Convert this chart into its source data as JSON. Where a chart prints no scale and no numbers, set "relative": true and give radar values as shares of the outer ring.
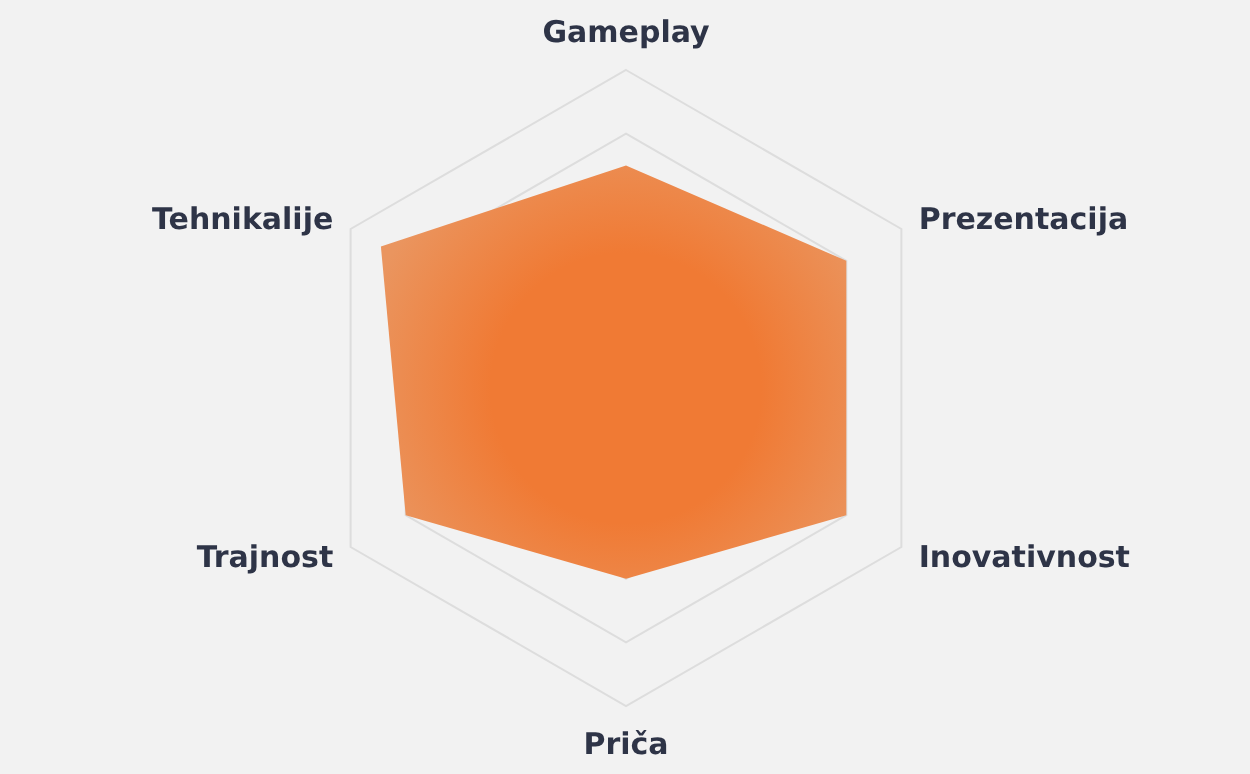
{
  "chart_data": {
    "type": "radar",
    "relative": true,
    "grid": true,
    "categories": [
      "Gameplay",
      "Prezentacija",
      "Inovativnost",
      "Priča",
      "Trajnost",
      "Tehnikalije"
    ],
    "series": [
      {
        "color": "#ea955f",
        "values": [
          0.7,
          0.8,
          0.8,
          0.6,
          0.8,
          0.89
        ]
      }
    ]
  }
}
